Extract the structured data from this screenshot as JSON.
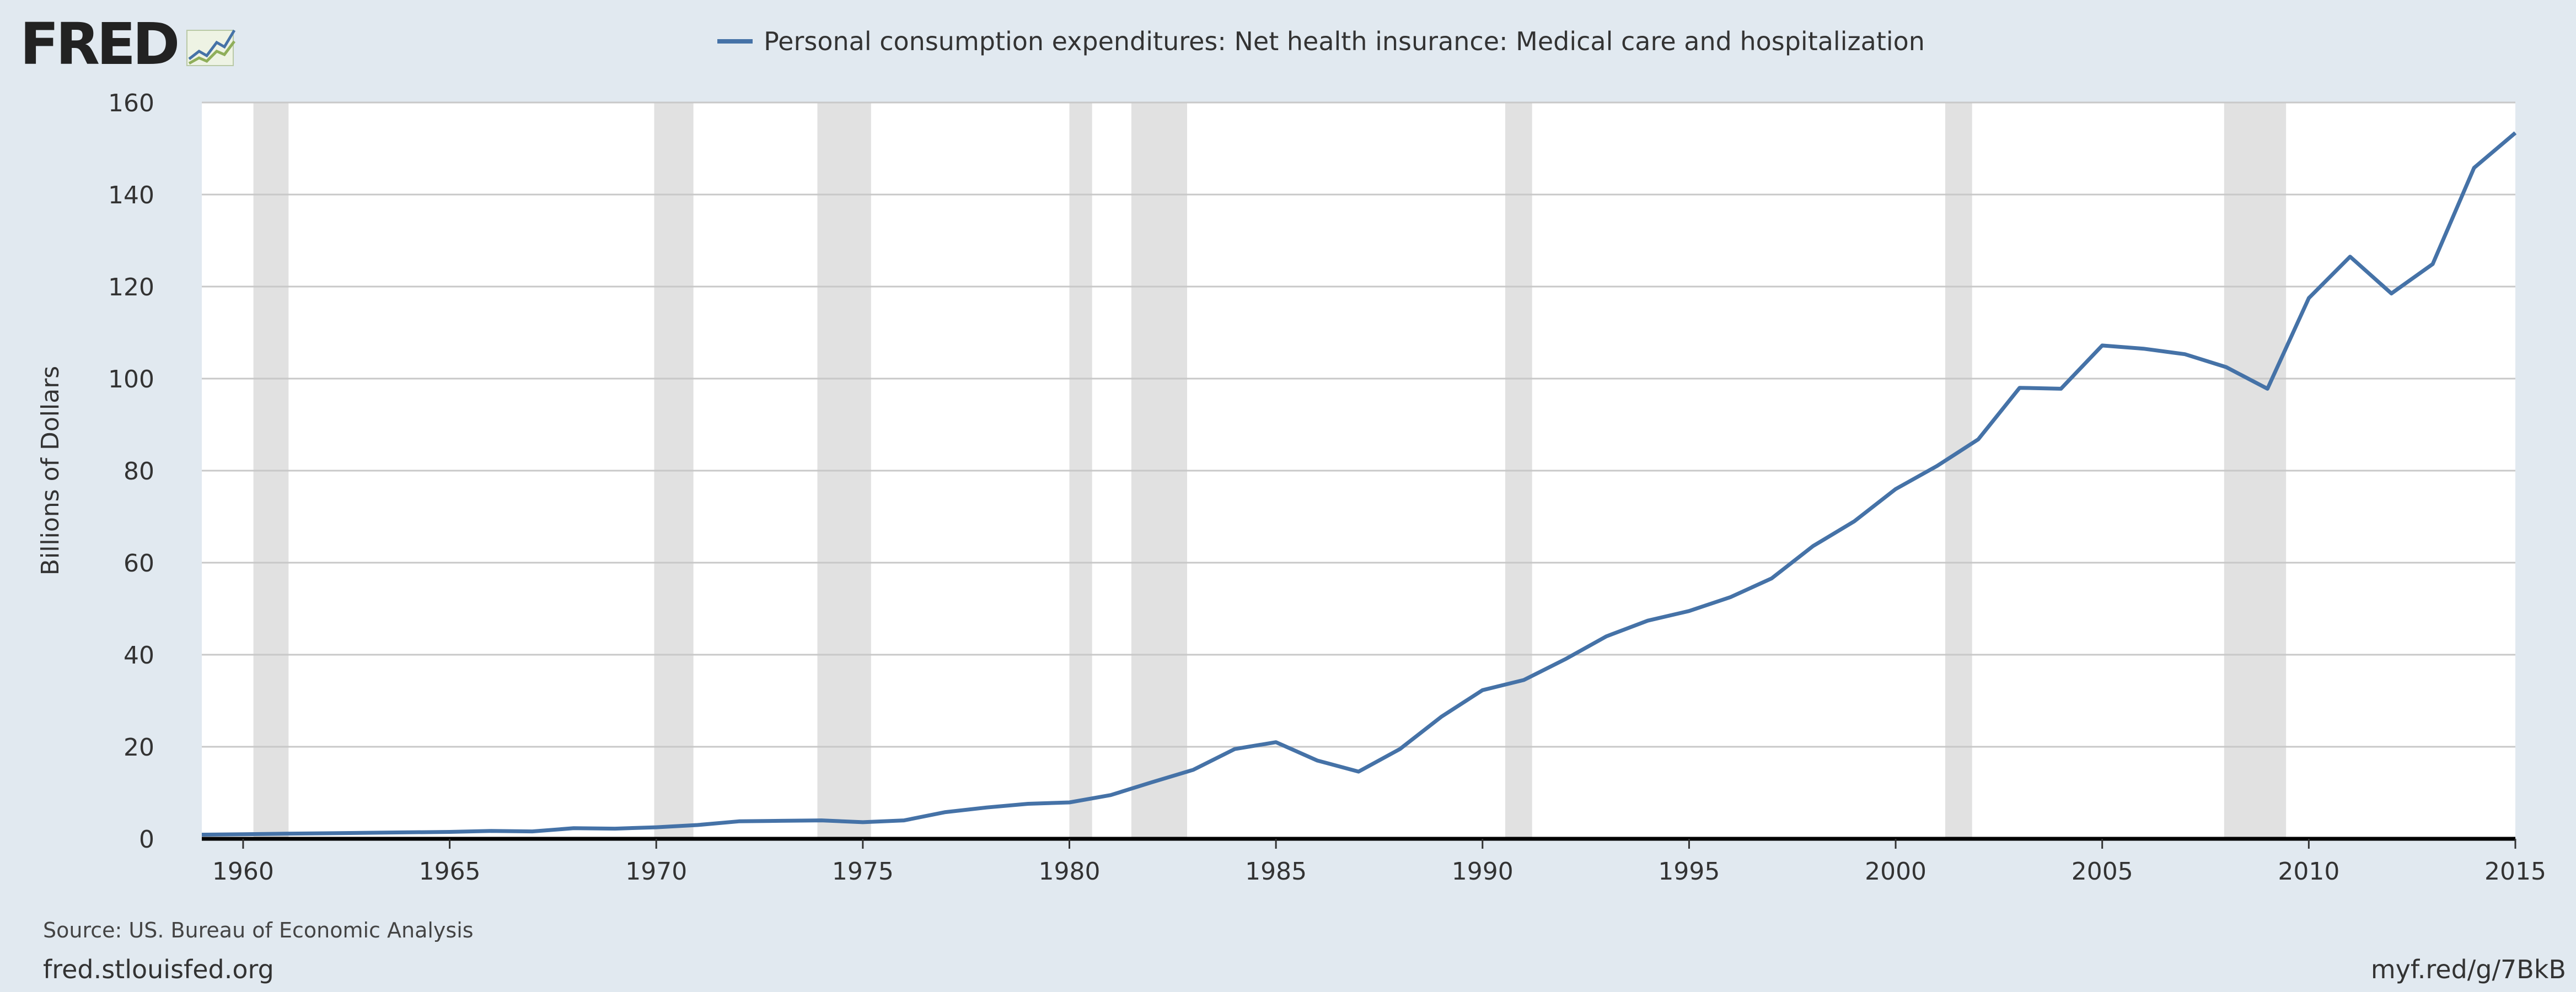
{
  "brand": {
    "logo_text": "FRED",
    "logo_icon": "trend-line-icon"
  },
  "chart_data": {
    "type": "line",
    "title": "",
    "legend_placement": "top-center",
    "series": [
      {
        "name": "Personal consumption expenditures: Net health insurance: Medical care and hospitalization",
        "color": "#4572a7",
        "x": [
          1959,
          1960,
          1961,
          1962,
          1963,
          1964,
          1965,
          1966,
          1967,
          1968,
          1969,
          1970,
          1971,
          1972,
          1973,
          1974,
          1975,
          1976,
          1977,
          1978,
          1979,
          1980,
          1981,
          1982,
          1983,
          1984,
          1985,
          1986,
          1987,
          1988,
          1989,
          1990,
          1991,
          1992,
          1993,
          1994,
          1995,
          1996,
          1997,
          1998,
          1999,
          2000,
          2001,
          2002,
          2003,
          2004,
          2005,
          2006,
          2007,
          2008,
          2009,
          2010,
          2011,
          2012,
          2013,
          2014,
          2015
        ],
        "values": [
          0.9,
          1.0,
          1.1,
          1.2,
          1.3,
          1.4,
          1.5,
          1.7,
          1.6,
          2.3,
          2.2,
          2.5,
          3.0,
          3.8,
          3.9,
          4.0,
          3.6,
          4.0,
          5.8,
          6.8,
          7.6,
          7.9,
          9.5,
          12.3,
          15.0,
          19.5,
          21.0,
          17.0,
          14.6,
          19.5,
          26.5,
          32.3,
          34.5,
          39.0,
          44.0,
          47.4,
          49.5,
          52.5,
          56.6,
          63.6,
          69.0,
          76.0,
          81.0,
          86.8,
          98.0,
          97.8,
          107.2,
          106.5,
          105.3,
          102.5,
          97.8,
          117.5,
          126.5,
          118.5,
          124.9,
          145.8,
          153.4
        ]
      }
    ],
    "xlim": [
      1959,
      2015
    ],
    "ylim": [
      0,
      160
    ],
    "xticks": [
      1960,
      1965,
      1970,
      1975,
      1980,
      1985,
      1990,
      1995,
      2000,
      2005,
      2010,
      2015
    ],
    "yticks": [
      0,
      20,
      40,
      60,
      80,
      100,
      120,
      140,
      160
    ],
    "xlabel": "",
    "ylabel": "Billions of Dollars",
    "grid": true,
    "recessions": [
      [
        1960.25,
        1961.1
      ],
      [
        1969.95,
        1970.9
      ],
      [
        1973.9,
        1975.2
      ],
      [
        1980.0,
        1980.55
      ],
      [
        1981.5,
        1982.85
      ],
      [
        1990.55,
        1991.2
      ],
      [
        2001.2,
        2001.85
      ],
      [
        2007.95,
        2009.45
      ]
    ],
    "colors": {
      "line": "#4572a7",
      "recession": "#e1e1e1",
      "grid": "#c8c8c8",
      "plot_bg": "#ffffff",
      "page_bg": "#e1e9f0"
    }
  },
  "footer": {
    "source": "Source: US. Bureau of Economic Analysis",
    "site": "fred.stlouisfed.org",
    "shortlink": "myf.red/g/7BkB"
  }
}
